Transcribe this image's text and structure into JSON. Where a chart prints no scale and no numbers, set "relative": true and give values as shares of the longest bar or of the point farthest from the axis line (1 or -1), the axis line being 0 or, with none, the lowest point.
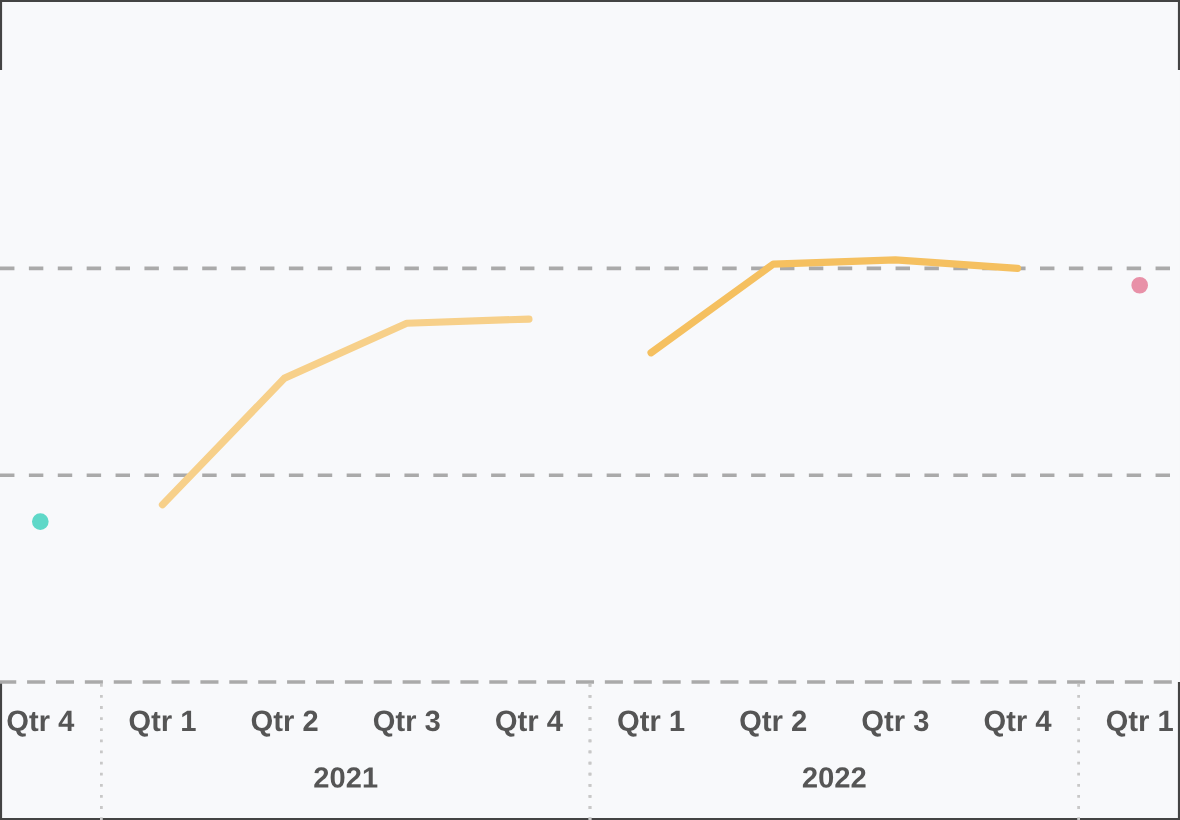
{
  "chart_data": {
    "type": "line",
    "relative": true,
    "line_style": "solid",
    "categories": [
      "Qtr 4",
      "Qtr 1",
      "Qtr 2",
      "Qtr 3",
      "Qtr 4",
      "Qtr 1",
      "Qtr 2",
      "Qtr 3",
      "Qtr 4",
      "Qtr 1"
    ],
    "series": [
      {
        "color": "#5fd8c8",
        "marker": "circle",
        "values": [
          0.38,
          null,
          null,
          null,
          null,
          null,
          null,
          null,
          null,
          null
        ]
      },
      {
        "color": "#f7d08a",
        "values": [
          null,
          0.42,
          0.72,
          0.85,
          0.86,
          null,
          null,
          null,
          null,
          null
        ]
      },
      {
        "color": "#f5c060",
        "values": [
          null,
          null,
          null,
          null,
          null,
          0.78,
          0.99,
          1,
          0.98,
          null
        ]
      },
      {
        "color": "#e891a8",
        "marker": "circle",
        "values": [
          null,
          null,
          null,
          null,
          null,
          null,
          null,
          null,
          null,
          0.94
        ]
      }
    ],
    "ref_lines": [
      {
        "axis": "y",
        "value": 0.49,
        "color": "#aaaaaa",
        "line_style": "dashed"
      },
      {
        "axis": "y",
        "value": 0.98,
        "color": "#aaaaaa",
        "line_style": "dashed"
      }
    ],
    "annotations": [
      "2021",
      "2022"
    ]
  }
}
